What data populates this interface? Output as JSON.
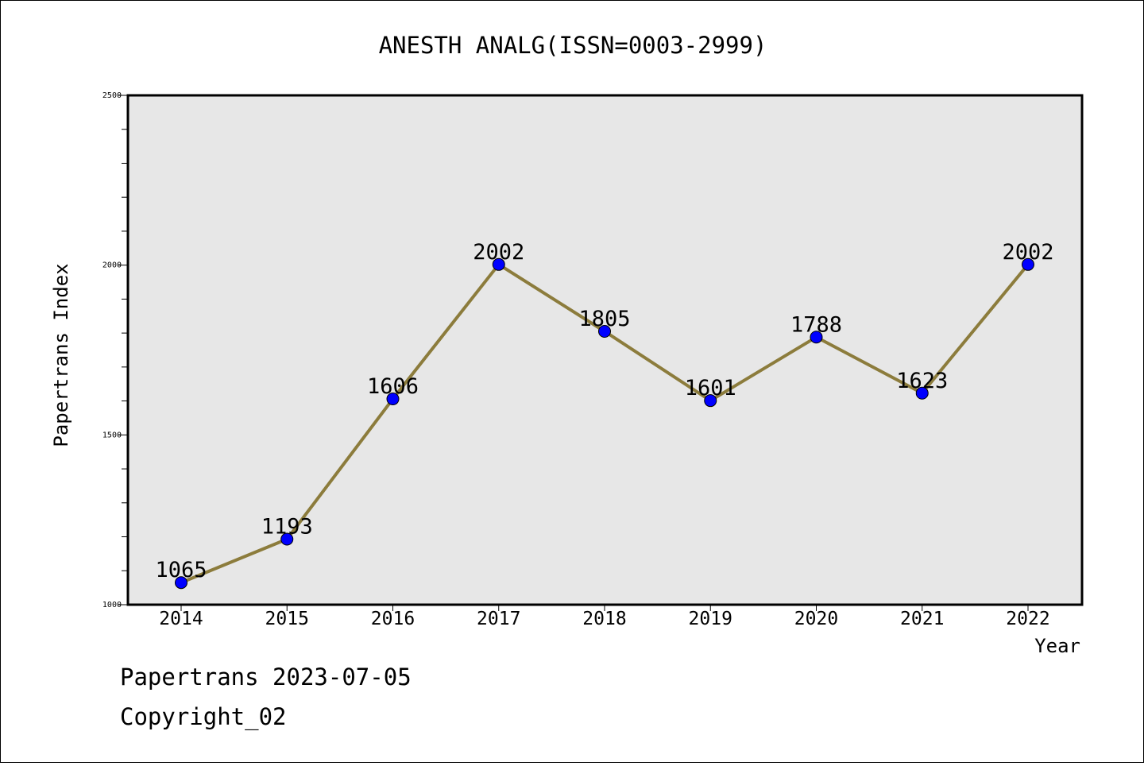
{
  "chart_data": {
    "type": "line",
    "title": "ANESTH ANALG(ISSN=0003-2999)",
    "xlabel": "Year",
    "ylabel": "Papertrans Index",
    "x": [
      "2014",
      "2015",
      "2016",
      "2017",
      "2018",
      "2019",
      "2020",
      "2021",
      "2022"
    ],
    "values": [
      1065,
      1193,
      1606,
      2002,
      1805,
      1601,
      1788,
      1623,
      2002
    ],
    "ylim": [
      1000,
      2500
    ],
    "yticks": [
      "1000",
      "1500",
      "2000",
      "2500"
    ],
    "grid": false,
    "colors": {
      "line": "#8c7c3c",
      "marker": "#0000ff",
      "plot_bg": "#e7e7e7"
    }
  },
  "footer": {
    "line1": "Papertrans 2023-07-05",
    "line2": "Copyright_02"
  }
}
